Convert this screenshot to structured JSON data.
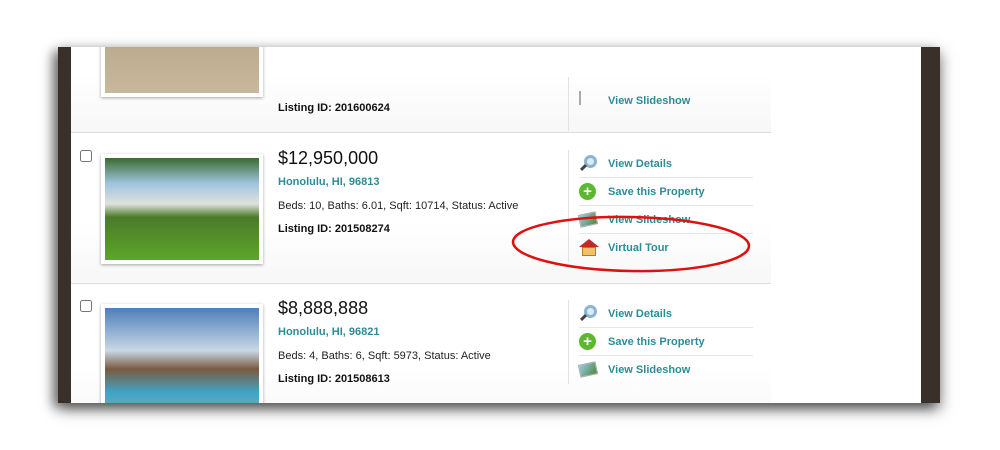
{
  "listings": [
    {
      "listing_id": "Listing ID: 201600624",
      "actions": [
        "View Slideshow"
      ]
    },
    {
      "price": "$12,950,000",
      "city": "Honolulu, HI, 96813",
      "facts": "Beds: 10, Baths: 6.01, Sqft: 10714, Status: Active",
      "listing_id": "Listing ID: 201508274",
      "actions": [
        "View Details",
        "Save this Property",
        "View Slideshow",
        "Virtual Tour"
      ]
    },
    {
      "price": "$8,888,888",
      "city": "Honolulu, HI, 96821",
      "facts": "Beds: 4, Baths: 6, Sqft: 5973, Status: Active",
      "listing_id": "Listing ID: 201508613",
      "actions": [
        "View Details",
        "Save this Property",
        "View Slideshow"
      ]
    }
  ],
  "colors": {
    "link": "#2e8b97",
    "annotation": "#e01010",
    "frame": "#3a302a"
  },
  "icons": {
    "details": "magnifier-icon",
    "save": "plus-circle-icon",
    "slideshow": "slideshow-icon",
    "tour": "house-icon"
  }
}
